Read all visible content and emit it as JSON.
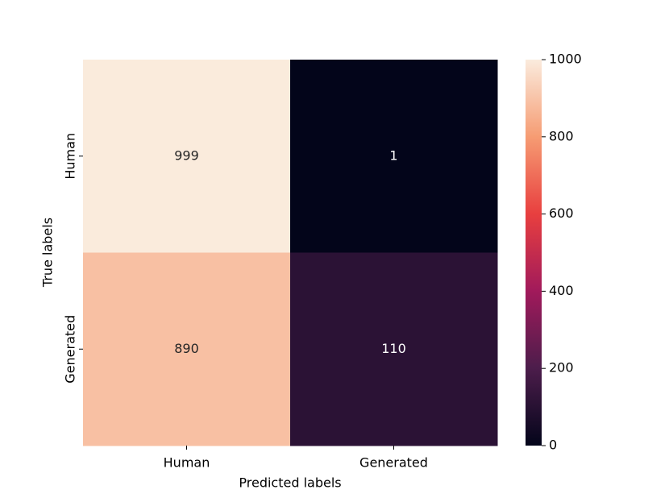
{
  "chart_data": {
    "type": "heatmap",
    "x_categories": [
      "Human",
      "Generated"
    ],
    "y_categories": [
      "Human",
      "Generated"
    ],
    "values": [
      [
        999,
        1
      ],
      [
        890,
        110
      ]
    ],
    "xlabel": "Predicted labels",
    "ylabel": "True labels",
    "colorbar_lim": [
      0,
      1000
    ],
    "colorbar_ticks": [
      0,
      200,
      400,
      600,
      800,
      1000
    ],
    "colorscale": [
      "#03051a",
      "#4c1d4b",
      "#a11a5b",
      "#e83f3f",
      "#f69c73",
      "#faebdd"
    ]
  }
}
